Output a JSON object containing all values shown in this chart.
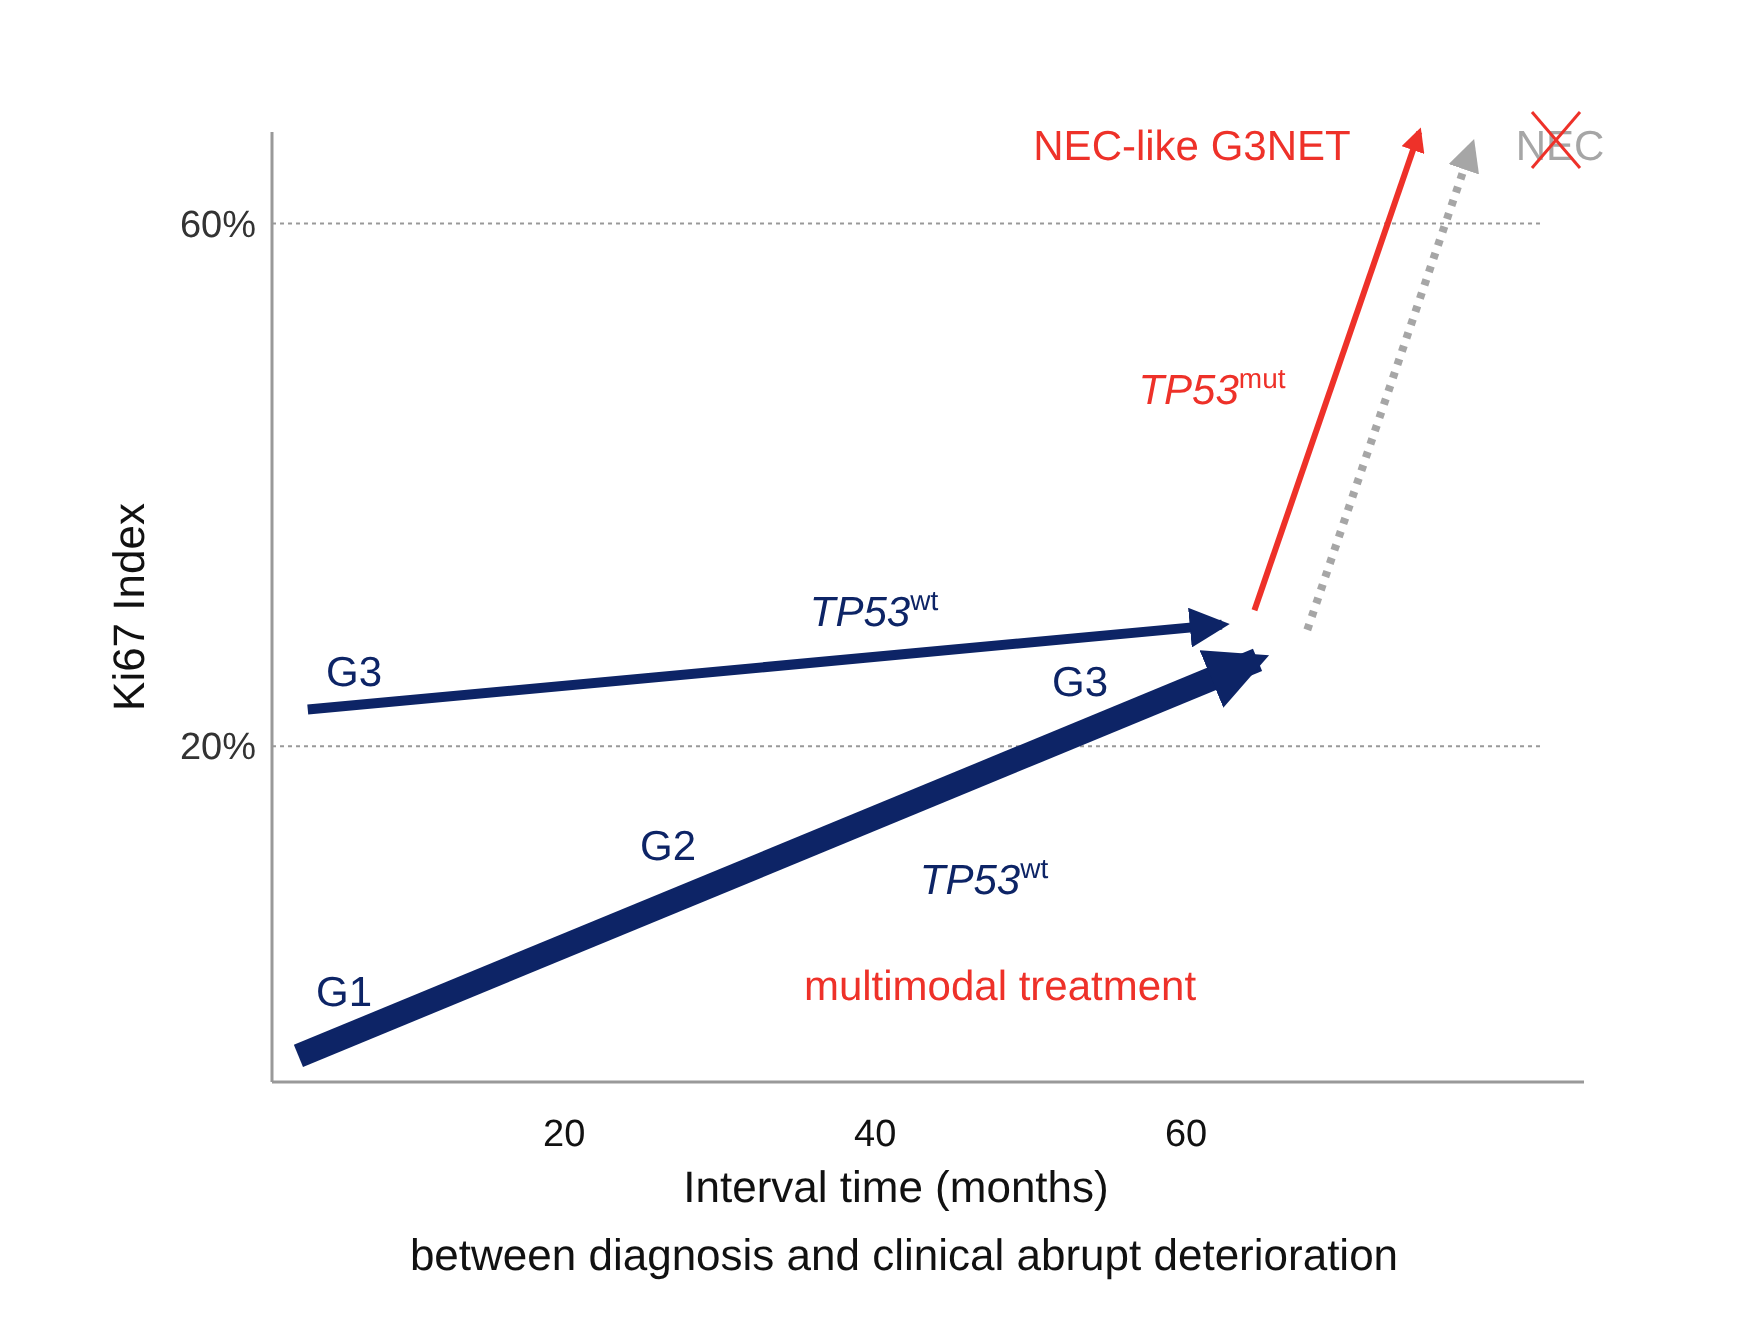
{
  "chart_data": {
    "type": "line",
    "xlabel": "Interval time (months)\nbetween diagnosis and clinical abrupt deterioration",
    "ylabel": "Ki67 Index",
    "xlim": [
      1.2,
      85.6
    ],
    "ylim": [
      -5.7,
      67
    ],
    "xticks": [
      20,
      40,
      60
    ],
    "yticks": [
      {
        "value": 20,
        "label": "20%"
      },
      {
        "value": 60,
        "label": "60%"
      }
    ],
    "grid": "y",
    "series": [
      {
        "color": "#0d2466",
        "x": [
          2.9,
          64.6
        ],
        "values": [
          -3.7,
          26.6
        ]
      },
      {
        "color": "#0d2466",
        "x": [
          3.5,
          62.3
        ],
        "values": [
          22.8,
          29.3
        ]
      },
      {
        "color": "#ee3129",
        "x": [
          64.4,
          75
        ],
        "values": [
          30.4,
          67
        ]
      },
      {
        "color": "#a6a6a6",
        "x": [
          67.8,
          78.4
        ],
        "values": [
          28.9,
          66
        ],
        "line_style": "dotted"
      }
    ],
    "annotations": [
      "G1",
      "G2",
      "G3",
      "G3",
      "TP53$^{wt}$",
      "TP53$^{wt}$",
      "TP53$^{mut}$",
      "multimodal treatment",
      "NEC-like G3NET",
      "NEC"
    ]
  }
}
